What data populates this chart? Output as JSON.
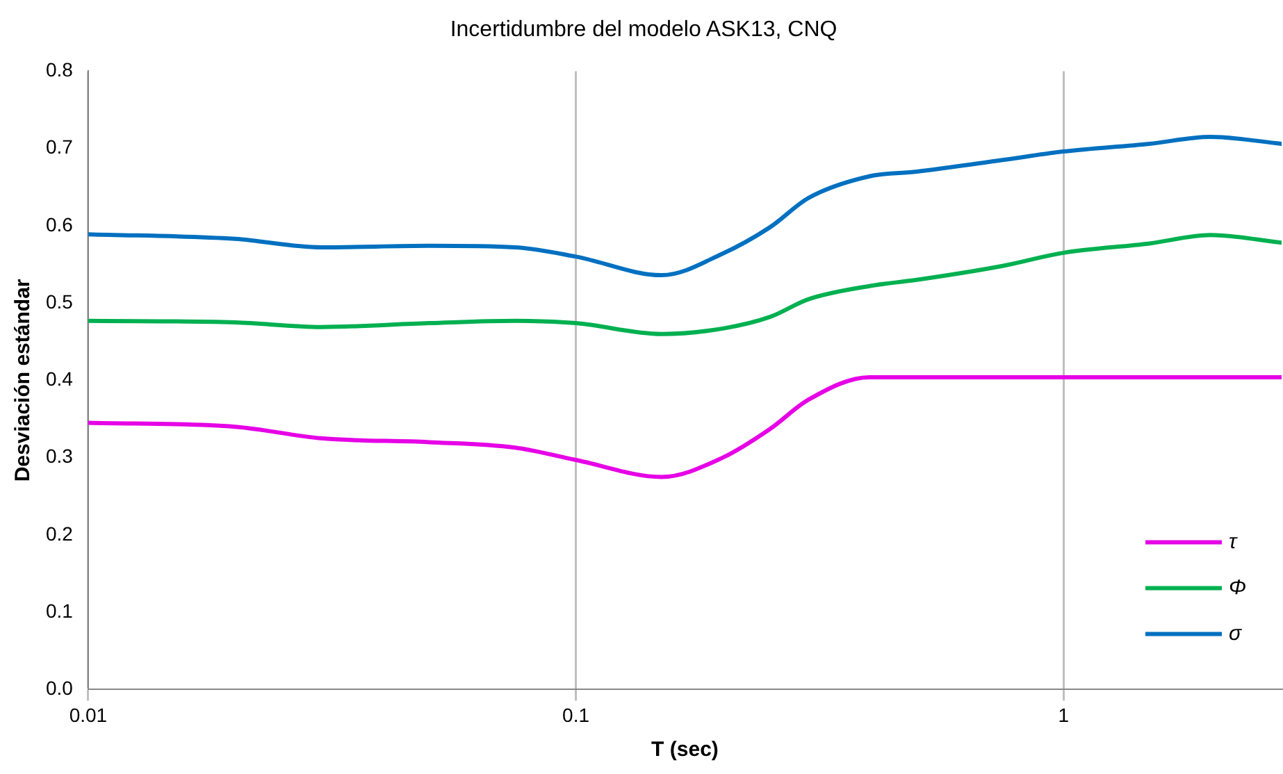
{
  "chart_data": {
    "type": "line",
    "title": "Incertidumbre del modelo ASK13, CNQ",
    "xlabel": "T (sec)",
    "ylabel": "Desviación estándar",
    "x": [
      0.01,
      0.02,
      0.03,
      0.05,
      0.075,
      0.1,
      0.15,
      0.2,
      0.25,
      0.3,
      0.4,
      0.5,
      0.75,
      1,
      1.5,
      2,
      2.8
    ],
    "series": [
      {
        "name": "τ",
        "color": "#e600e6",
        "values": [
          0.345,
          0.34,
          0.325,
          0.32,
          0.313,
          0.297,
          0.275,
          0.3,
          0.337,
          0.375,
          0.404,
          0.404,
          0.404,
          0.404,
          0.404,
          0.404,
          0.404
        ]
      },
      {
        "name": "Φ",
        "color": "#00b050",
        "values": [
          0.477,
          0.475,
          0.469,
          0.474,
          0.477,
          0.474,
          0.46,
          0.467,
          0.482,
          0.505,
          0.522,
          0.53,
          0.548,
          0.565,
          0.577,
          0.588,
          0.578
        ]
      },
      {
        "name": "σ",
        "color": "#0070c0",
        "values": [
          0.589,
          0.583,
          0.572,
          0.574,
          0.572,
          0.56,
          0.536,
          0.564,
          0.598,
          0.636,
          0.664,
          0.67,
          0.685,
          0.696,
          0.706,
          0.715,
          0.706
        ]
      }
    ],
    "log": "x",
    "xlim": [
      0.01,
      2.8
    ],
    "xticks": [
      0.01,
      0.1,
      1
    ],
    "ylim": [
      0,
      0.8
    ],
    "yticks": [
      {
        "value": 0,
        "label": "0.0"
      },
      {
        "value": 0.1,
        "label": "0.1"
      },
      {
        "value": 0.2,
        "label": "0.2"
      },
      {
        "value": 0.3,
        "label": "0.3"
      },
      {
        "value": 0.4,
        "label": "0.4"
      },
      {
        "value": 0.5,
        "label": "0.5"
      },
      {
        "value": 0.6,
        "label": "0.6"
      },
      {
        "value": 0.7,
        "label": "0.7"
      },
      {
        "value": 0.8,
        "label": "0.8"
      }
    ],
    "grid": "x",
    "legend": "bottom right",
    "marker": "none",
    "line_style": "solid"
  }
}
